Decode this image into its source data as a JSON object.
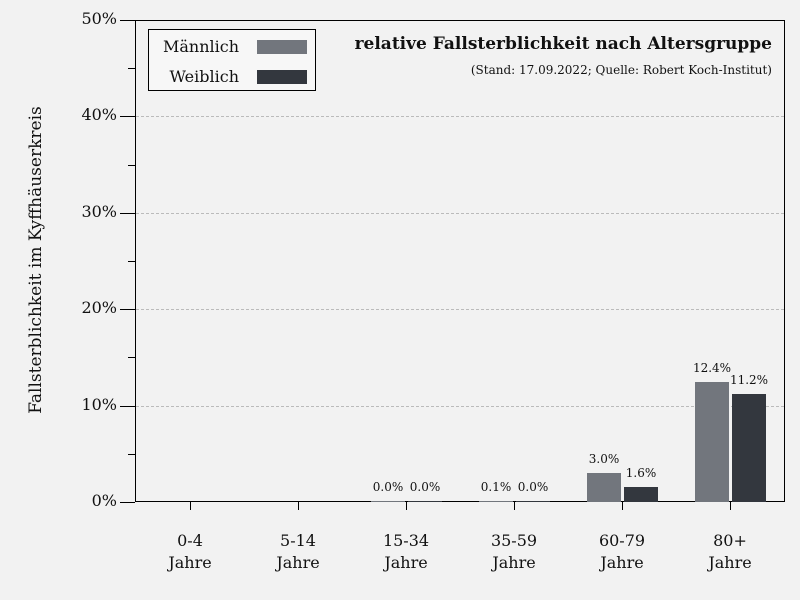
{
  "chart_data": {
    "type": "bar",
    "title": "relative Fallsterblichkeit nach Altersgruppe",
    "subtitle": "(Stand: 17.09.2022; Quelle: Robert Koch-Institut)",
    "xlabel": "",
    "ylabel": "Fallsterblichkeit im Kyffhäuserkreis",
    "ylim": [
      0,
      50
    ],
    "yticks": [
      "0%",
      "10%",
      "20%",
      "30%",
      "40%",
      "50%"
    ],
    "grid": true,
    "legend_position": "upper left",
    "categories": [
      "0-4 Jahre",
      "5-14 Jahre",
      "15-34 Jahre",
      "35-59 Jahre",
      "60-79 Jahre",
      "80+ Jahre"
    ],
    "category_lines": [
      [
        "0-4",
        "Jahre"
      ],
      [
        "5-14",
        "Jahre"
      ],
      [
        "15-34",
        "Jahre"
      ],
      [
        "35-59",
        "Jahre"
      ],
      [
        "60-79",
        "Jahre"
      ],
      [
        "80+",
        "Jahre"
      ]
    ],
    "series": [
      {
        "name": "Männlich",
        "color": "#72767d",
        "values": [
          null,
          null,
          0.0,
          0.1,
          3.0,
          12.4
        ],
        "labels": [
          "",
          "",
          "0.0%",
          "0.1%",
          "3.0%",
          "12.4%"
        ]
      },
      {
        "name": "Weiblich",
        "color": "#33373e",
        "values": [
          null,
          null,
          0.0,
          0.0,
          1.6,
          11.2
        ],
        "labels": [
          "",
          "",
          "0.0%",
          "0.0%",
          "1.6%",
          "11.2%"
        ]
      }
    ]
  }
}
